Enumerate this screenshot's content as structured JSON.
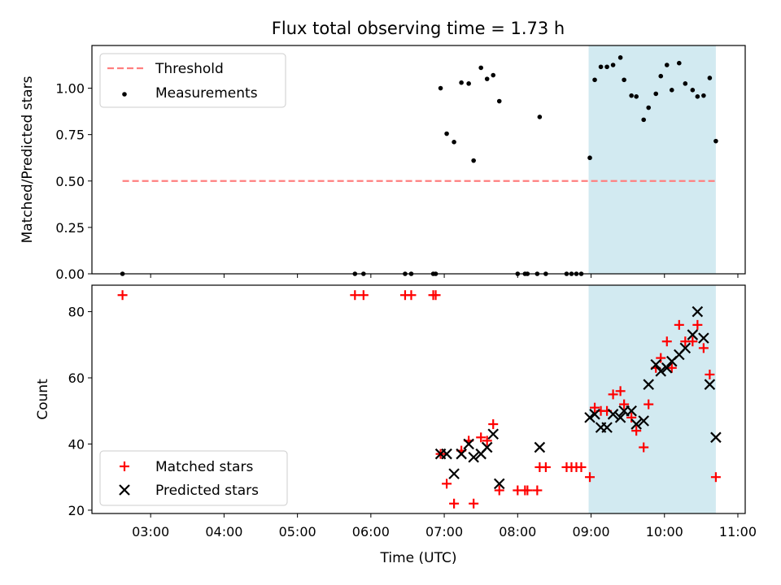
{
  "title": "Flux total observing time = 1.73 h",
  "colors": {
    "threshold": "#ff7f7f",
    "measurement": "#000000",
    "matched": "#ff0000",
    "predicted": "#000000",
    "shade": "#add8e6"
  },
  "chart_data": [
    {
      "type": "scatter",
      "ylabel": "Matched/Predicted stars",
      "xlabel": "",
      "xlim": [
        "02:12",
        "11:06"
      ],
      "ylim": [
        0,
        1.23
      ],
      "yticks": [
        0.0,
        0.25,
        0.5,
        0.75,
        1.0
      ],
      "ytick_labels": [
        "0.00",
        "0.25",
        "0.50",
        "0.75",
        "1.00"
      ],
      "shaded_span": [
        "08:58",
        "10:42"
      ],
      "threshold": {
        "name": "Threshold",
        "y": 0.5,
        "x_range": [
          "02:37",
          "10:42"
        ]
      },
      "legend": {
        "position": "top-left",
        "entries": [
          "Threshold",
          "Measurements"
        ]
      },
      "series": [
        {
          "name": "Measurements",
          "points": [
            [
              "02:37",
              0.0
            ],
            [
              "05:47",
              0.0
            ],
            [
              "05:54",
              0.0
            ],
            [
              "06:28",
              0.0
            ],
            [
              "06:33",
              0.0
            ],
            [
              "06:51",
              0.0
            ],
            [
              "06:53",
              0.0
            ],
            [
              "06:57",
              1.0
            ],
            [
              "07:02",
              0.755
            ],
            [
              "07:08",
              0.71
            ],
            [
              "07:14",
              1.03
            ],
            [
              "07:20",
              1.025
            ],
            [
              "07:24",
              0.61
            ],
            [
              "07:30",
              1.11
            ],
            [
              "07:35",
              1.05
            ],
            [
              "07:40",
              1.07
            ],
            [
              "07:45",
              0.93
            ],
            [
              "08:00",
              0.0
            ],
            [
              "08:06",
              0.0
            ],
            [
              "08:08",
              0.0
            ],
            [
              "08:16",
              0.0
            ],
            [
              "08:18",
              0.845
            ],
            [
              "08:23",
              0.0
            ],
            [
              "08:40",
              0.0
            ],
            [
              "08:44",
              0.0
            ],
            [
              "08:48",
              0.0
            ],
            [
              "08:52",
              0.0
            ],
            [
              "08:59",
              0.625
            ],
            [
              "09:03",
              1.045
            ],
            [
              "09:08",
              1.115
            ],
            [
              "09:13",
              1.115
            ],
            [
              "09:18",
              1.125
            ],
            [
              "09:24",
              1.165
            ],
            [
              "09:27",
              1.045
            ],
            [
              "09:33",
              0.96
            ],
            [
              "09:37",
              0.955
            ],
            [
              "09:43",
              0.83
            ],
            [
              "09:47",
              0.895
            ],
            [
              "09:53",
              0.97
            ],
            [
              "09:57",
              1.065
            ],
            [
              "10:02",
              1.125
            ],
            [
              "10:06",
              0.99
            ],
            [
              "10:12",
              1.135
            ],
            [
              "10:17",
              1.025
            ],
            [
              "10:23",
              0.99
            ],
            [
              "10:27",
              0.955
            ],
            [
              "10:32",
              0.96
            ],
            [
              "10:37",
              1.055
            ],
            [
              "10:42",
              0.715
            ]
          ]
        }
      ]
    },
    {
      "type": "scatter",
      "ylabel": "Count",
      "xlabel": "Time (UTC)",
      "xlim": [
        "02:12",
        "11:06"
      ],
      "ylim": [
        19,
        88
      ],
      "yticks": [
        20,
        40,
        60,
        80
      ],
      "ytick_labels": [
        "20",
        "40",
        "60",
        "80"
      ],
      "xticks": [
        "03:00",
        "04:00",
        "05:00",
        "06:00",
        "07:00",
        "08:00",
        "09:00",
        "10:00",
        "11:00"
      ],
      "xtick_labels": [
        "03:00",
        "04:00",
        "05:00",
        "06:00",
        "07:00",
        "08:00",
        "09:00",
        "10:00",
        "11:00"
      ],
      "shaded_span": [
        "08:58",
        "10:42"
      ],
      "legend": {
        "position": "bottom-left",
        "entries": [
          "Matched stars",
          "Predicted stars"
        ]
      },
      "series": [
        {
          "name": "Matched stars",
          "marker": "plus",
          "points": [
            [
              "02:37",
              85
            ],
            [
              "05:47",
              85
            ],
            [
              "05:54",
              85
            ],
            [
              "06:28",
              85
            ],
            [
              "06:33",
              85
            ],
            [
              "06:51",
              85
            ],
            [
              "06:53",
              85
            ],
            [
              "06:57",
              37
            ],
            [
              "07:02",
              28
            ],
            [
              "07:08",
              22
            ],
            [
              "07:14",
              38
            ],
            [
              "07:20",
              41
            ],
            [
              "07:24",
              22
            ],
            [
              "07:30",
              42
            ],
            [
              "07:35",
              41
            ],
            [
              "07:40",
              46
            ],
            [
              "07:45",
              26
            ],
            [
              "08:00",
              26
            ],
            [
              "08:06",
              26
            ],
            [
              "08:08",
              26
            ],
            [
              "08:16",
              26
            ],
            [
              "08:18",
              33
            ],
            [
              "08:23",
              33
            ],
            [
              "08:40",
              33
            ],
            [
              "08:44",
              33
            ],
            [
              "08:48",
              33
            ],
            [
              "08:52",
              33
            ],
            [
              "08:59",
              30
            ],
            [
              "09:03",
              51
            ],
            [
              "09:08",
              50
            ],
            [
              "09:13",
              50
            ],
            [
              "09:18",
              55
            ],
            [
              "09:24",
              56
            ],
            [
              "09:27",
              52
            ],
            [
              "09:33",
              48
            ],
            [
              "09:37",
              44
            ],
            [
              "09:43",
              39
            ],
            [
              "09:47",
              52
            ],
            [
              "09:53",
              63
            ],
            [
              "09:57",
              66
            ],
            [
              "10:02",
              71
            ],
            [
              "10:06",
              63
            ],
            [
              "10:12",
              76
            ],
            [
              "10:17",
              71
            ],
            [
              "10:23",
              71
            ],
            [
              "10:27",
              76
            ],
            [
              "10:32",
              69
            ],
            [
              "10:37",
              61
            ],
            [
              "10:42",
              30
            ]
          ]
        },
        {
          "name": "Predicted stars",
          "marker": "x",
          "points": [
            [
              "06:57",
              37
            ],
            [
              "07:02",
              37
            ],
            [
              "07:08",
              31
            ],
            [
              "07:14",
              37
            ],
            [
              "07:20",
              40
            ],
            [
              "07:24",
              36
            ],
            [
              "07:30",
              37
            ],
            [
              "07:35",
              39
            ],
            [
              "07:40",
              43
            ],
            [
              "07:45",
              28
            ],
            [
              "08:18",
              39
            ],
            [
              "08:59",
              48
            ],
            [
              "09:03",
              49
            ],
            [
              "09:08",
              45
            ],
            [
              "09:13",
              45
            ],
            [
              "09:18",
              49
            ],
            [
              "09:24",
              48
            ],
            [
              "09:27",
              50
            ],
            [
              "09:33",
              50
            ],
            [
              "09:37",
              46
            ],
            [
              "09:43",
              47
            ],
            [
              "09:47",
              58
            ],
            [
              "09:53",
              64
            ],
            [
              "09:57",
              62
            ],
            [
              "10:02",
              63
            ],
            [
              "10:06",
              65
            ],
            [
              "10:12",
              67
            ],
            [
              "10:17",
              69
            ],
            [
              "10:23",
              73
            ],
            [
              "10:27",
              80
            ],
            [
              "10:32",
              72
            ],
            [
              "10:37",
              58
            ],
            [
              "10:42",
              42
            ]
          ]
        }
      ]
    }
  ]
}
